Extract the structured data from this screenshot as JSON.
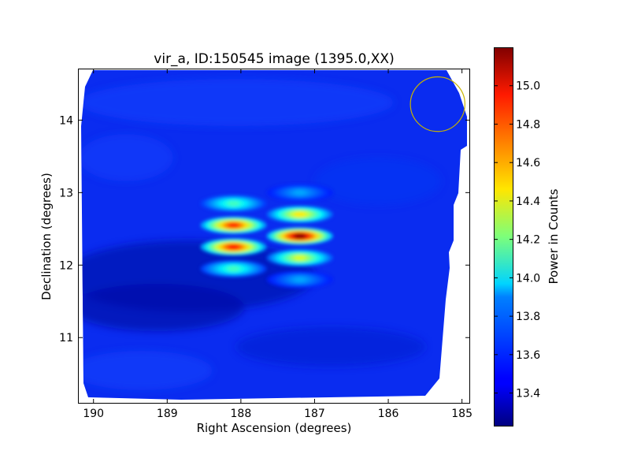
{
  "chart_data": {
    "type": "heatmap",
    "title": "vir_a, ID:150545 image (1395.0,XX)",
    "xlabel": "Right Ascension (degrees)",
    "ylabel": "Declination (degrees)",
    "xlim": [
      190.2,
      184.9
    ],
    "ylim": [
      10.1,
      14.7
    ],
    "xticks": [
      190,
      189,
      188,
      187,
      186,
      185
    ],
    "yticks": [
      11,
      12,
      13,
      14
    ],
    "colorbar": {
      "label": "Power in Counts",
      "range": [
        13.23,
        15.2
      ],
      "ticks": [
        "13.4",
        "13.6",
        "13.8",
        "14.0",
        "14.2",
        "14.4",
        "14.6",
        "14.8",
        "15.0"
      ],
      "colormap": "jet"
    },
    "background_level": 13.45,
    "peak_level": 15.2,
    "hotspots": [
      {
        "ra": 188.1,
        "dec": 12.55,
        "value": 14.9
      },
      {
        "ra": 188.1,
        "dec": 12.25,
        "value": 14.95
      },
      {
        "ra": 188.1,
        "dec": 12.85,
        "value": 14.1
      },
      {
        "ra": 188.1,
        "dec": 11.95,
        "value": 14.1
      },
      {
        "ra": 187.2,
        "dec": 12.4,
        "value": 15.2
      },
      {
        "ra": 187.2,
        "dec": 12.7,
        "value": 14.5
      },
      {
        "ra": 187.2,
        "dec": 12.1,
        "value": 14.4
      },
      {
        "ra": 187.2,
        "dec": 13.0,
        "value": 13.8
      },
      {
        "ra": 187.2,
        "dec": 11.8,
        "value": 13.8
      }
    ],
    "beam_marker": {
      "ra": 185.33,
      "dec": 14.22,
      "radius_deg": 0.37,
      "color": "#c8b400"
    }
  }
}
